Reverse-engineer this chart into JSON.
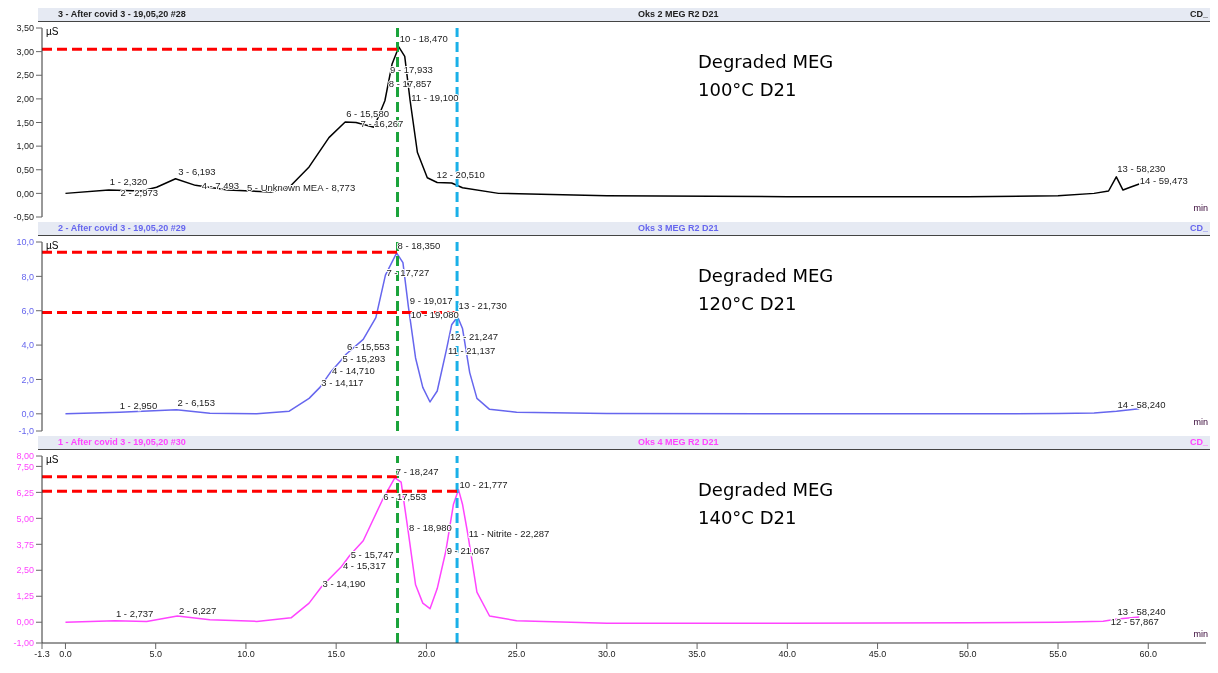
{
  "chart_data": [
    {
      "type": "line",
      "title": "3 - After covid 3 - 19,05,20 #28",
      "subtitle": "Oks 2 MEG R2 D21",
      "ylabel": "µS",
      "xlabel": "min",
      "tick_labels": "y",
      "marker": "none",
      "xlim": [
        -1.3,
        63.2
      ],
      "ylim": [
        -0.5,
        3.5
      ],
      "yticks": [
        {
          "value": -0.5,
          "label": "-0,50"
        },
        {
          "value": 0,
          "label": "0,00"
        },
        {
          "value": 0.5,
          "label": "0,50"
        },
        {
          "value": 1,
          "label": "1,00"
        },
        {
          "value": 1.5,
          "label": "1,50"
        },
        {
          "value": 2,
          "label": "2,00"
        },
        {
          "value": 2.5,
          "label": "2,50"
        },
        {
          "value": 3,
          "label": "3,00"
        },
        {
          "value": 3.5,
          "label": "3,50"
        }
      ],
      "series": [
        {
          "color": "#000000",
          "x": [
            0,
            2.4,
            4.2,
            5.05,
            6.1,
            7.2,
            9.0,
            11.4,
            12.4,
            13.5,
            14.6,
            15.5,
            16.1,
            17.1,
            17.7,
            18.1,
            18.47,
            18.8,
            19.1,
            19.5,
            20.05,
            20.6,
            21.4,
            22.0,
            24.0,
            30,
            40,
            50,
            55,
            57,
            57.8,
            58.23,
            58.6,
            59.0,
            59.5
          ],
          "values": [
            0,
            0.07,
            0.05,
            0.13,
            0.31,
            0.17,
            0.07,
            0.03,
            0.13,
            0.56,
            1.18,
            1.51,
            1.5,
            1.4,
            1.96,
            2.74,
            3.1,
            2.9,
            1.96,
            0.87,
            0.33,
            0.23,
            0.22,
            0.12,
            0,
            -0.05,
            -0.07,
            -0.07,
            -0.05,
            0,
            0.05,
            0.35,
            0.07,
            0.13,
            0.2
          ]
        }
      ],
      "ref_lines": [
        {
          "axis": "x",
          "value": 18.4,
          "color": "#1aa33a",
          "line_style": "dashed"
        },
        {
          "axis": "x",
          "value": 21.7,
          "color": "#1ab0e8",
          "line_style": "dashed"
        },
        {
          "axis": "y",
          "value": 3.05,
          "color": "#ff0000",
          "line_style": "dashed"
        }
      ],
      "annotations": [
        "Degraded MEG\n100°C D21",
        "CD_",
        {
          "text": "1 - 2,320",
          "x": 2.4,
          "y": 0.17
        },
        {
          "text": "2 - 2,973",
          "x": 3.0,
          "y": -0.05
        },
        {
          "text": "3 - 6,193",
          "x": 6.19,
          "y": 0.38
        },
        {
          "text": "4 - 7,493",
          "x": 7.49,
          "y": 0.1
        },
        {
          "text": "5 - Unknown MEA - 8,773",
          "x": 10.0,
          "y": 0.05
        },
        {
          "text": "6 - 15,580",
          "x": 15.5,
          "y": 1.62
        },
        {
          "text": "7 - 16,267",
          "x": 16.3,
          "y": 1.4
        },
        {
          "text": "8 - 17,857",
          "x": 17.86,
          "y": 2.25
        },
        {
          "text": "9 - 17,933",
          "x": 17.93,
          "y": 2.55
        },
        {
          "text": "10 - 18,470",
          "x": 18.47,
          "y": 3.2
        },
        {
          "text": "11 - 19,100",
          "x": 19.1,
          "y": 1.95
        },
        {
          "text": "12 - 20,510",
          "x": 20.51,
          "y": 0.32
        },
        {
          "text": "13 - 58,230",
          "x": 58.23,
          "y": 0.45
        },
        {
          "text": "14 - 59,473",
          "x": 59.47,
          "y": 0.2
        }
      ]
    },
    {
      "type": "line",
      "title": "2 - After covid 3 - 19,05,20 #29",
      "subtitle": "Oks 3 MEG R2 D21",
      "ylabel": "µS",
      "xlabel": "min",
      "tick_labels": "y",
      "marker": "none",
      "xlim": [
        -1.3,
        63.2
      ],
      "ylim": [
        -1,
        10
      ],
      "yticks": [
        {
          "value": -1,
          "label": "-1,0"
        },
        {
          "value": 0,
          "label": "0,0"
        },
        {
          "value": 2,
          "label": "2,0"
        },
        {
          "value": 4,
          "label": "4,0"
        },
        {
          "value": 6,
          "label": "6,0"
        },
        {
          "value": 8,
          "label": "8,0"
        },
        {
          "value": 10,
          "label": "10,0"
        }
      ],
      "series": [
        {
          "color": "#6666ee",
          "x": [
            0,
            3,
            6.15,
            8,
            10.6,
            12.4,
            13.5,
            14.1,
            14.7,
            15.3,
            15.55,
            16.5,
            17.2,
            17.73,
            18.35,
            18.7,
            19.0,
            19.4,
            19.8,
            20.2,
            20.6,
            21.1,
            21.4,
            21.73,
            22.0,
            22.4,
            22.8,
            23.5,
            25,
            30,
            40,
            50,
            55,
            57,
            58.24,
            59.5
          ],
          "values": [
            0,
            0.09,
            0.24,
            0.04,
            0,
            0.15,
            0.9,
            1.54,
            2.44,
            3.15,
            3.47,
            4.33,
            5.6,
            8.07,
            9.36,
            8.8,
            6.25,
            3.25,
            1.54,
            0.69,
            1.33,
            3.68,
            5.18,
            5.65,
            4.97,
            2.4,
            0.9,
            0.26,
            0.09,
            0.02,
            0,
            0,
            0.02,
            0.05,
            0.15,
            0.3
          ]
        }
      ],
      "ref_lines": [
        {
          "axis": "x",
          "value": 18.4,
          "color": "#1aa33a",
          "line_style": "dashed"
        },
        {
          "axis": "x",
          "value": 21.7,
          "color": "#1ab0e8",
          "line_style": "dashed"
        },
        {
          "axis": "y",
          "value": 9.4,
          "color": "#ff0000",
          "line_style": "dashed"
        },
        {
          "axis": "y",
          "value": 5.9,
          "color": "#ff0000",
          "line_style": "dashed"
        }
      ],
      "annotations": [
        "Degraded MEG\n120°C D21",
        "CD_",
        {
          "text": "1 - 2,950",
          "x": 2.95,
          "y": 0.3
        },
        {
          "text": "2 - 6,153",
          "x": 6.15,
          "y": 0.45
        },
        {
          "text": "3 - 14,117",
          "x": 14.12,
          "y": 1.6
        },
        {
          "text": "4 - 14,710",
          "x": 14.71,
          "y": 2.3
        },
        {
          "text": "5 - 15,293",
          "x": 15.29,
          "y": 3.0
        },
        {
          "text": "6 - 15,553",
          "x": 15.55,
          "y": 3.7
        },
        {
          "text": "7 - 17,727",
          "x": 17.73,
          "y": 8.0
        },
        {
          "text": "8 - 18,350",
          "x": 18.35,
          "y": 9.6
        },
        {
          "text": "9 - 19,017",
          "x": 19.02,
          "y": 6.4
        },
        {
          "text": "10 - 19,080",
          "x": 19.08,
          "y": 5.6
        },
        {
          "text": "11 - 21,137",
          "x": 21.14,
          "y": 3.5
        },
        {
          "text": "12 - 21,247",
          "x": 21.25,
          "y": 4.3
        },
        {
          "text": "13 - 21,730",
          "x": 21.73,
          "y": 6.1
        },
        {
          "text": "14 - 58,240",
          "x": 58.24,
          "y": 0.35
        }
      ]
    },
    {
      "type": "line",
      "title": "1 - After covid 3 - 19,05,20 #30",
      "subtitle": "Oks 4 MEG R2 D21",
      "ylabel": "µS",
      "xlabel": "min",
      "marker": "none",
      "xlim": [
        -1.3,
        63.2
      ],
      "ylim": [
        -1,
        8
      ],
      "xticks": [
        -1.3,
        {
          "value": 0,
          "label": "0.0"
        },
        {
          "value": 5,
          "label": "5.0"
        },
        {
          "value": 10,
          "label": "10.0"
        },
        {
          "value": 15,
          "label": "15.0"
        },
        {
          "value": 20,
          "label": "20.0"
        },
        {
          "value": 25,
          "label": "25.0"
        },
        {
          "value": 30,
          "label": "30.0"
        },
        {
          "value": 35,
          "label": "35.0"
        },
        {
          "value": 40,
          "label": "40.0"
        },
        {
          "value": 45,
          "label": "45.0"
        },
        {
          "value": 50,
          "label": "50.0"
        },
        {
          "value": 55,
          "label": "55.0"
        },
        {
          "value": 60,
          "label": "60.0"
        }
      ],
      "yticks": [
        {
          "value": -1,
          "label": "-1,00"
        },
        {
          "value": 0,
          "label": "0,00"
        },
        {
          "value": 1.25,
          "label": "1,25"
        },
        {
          "value": 2.5,
          "label": "2,50"
        },
        {
          "value": 3.75,
          "label": "3,75"
        },
        {
          "value": 5,
          "label": "5,00"
        },
        {
          "value": 6.25,
          "label": "6,25"
        },
        {
          "value": 7.5,
          "label": "7,50"
        },
        {
          "value": 8,
          "label": "8,00"
        }
      ],
      "series": [
        {
          "color": "#ff44ff",
          "x": [
            0,
            2.74,
            4.5,
            6.2,
            8,
            10.6,
            12.5,
            13.5,
            14.19,
            15.3,
            15.75,
            16.5,
            17.55,
            18.25,
            18.6,
            18.98,
            19.4,
            19.8,
            20.2,
            20.6,
            21.07,
            21.5,
            21.78,
            22.0,
            22.29,
            22.8,
            23.5,
            25,
            30,
            40,
            50,
            55,
            57.5,
            58.3,
            59.5
          ],
          "values": [
            0,
            0.07,
            0.03,
            0.3,
            0.12,
            0.04,
            0.21,
            0.92,
            1.71,
            2.68,
            3.21,
            3.92,
            5.86,
            6.95,
            6.74,
            4.44,
            1.8,
            0.92,
            0.65,
            1.62,
            3.39,
            5.68,
            6.38,
            5.68,
            4.27,
            1.45,
            0.3,
            0.07,
            -0.05,
            -0.05,
            -0.03,
            0,
            0.05,
            0.15,
            0.25
          ]
        }
      ],
      "ref_lines": [
        {
          "axis": "x",
          "value": 18.4,
          "color": "#1aa33a",
          "line_style": "dashed"
        },
        {
          "axis": "x",
          "value": 21.7,
          "color": "#1ab0e8",
          "line_style": "dashed"
        },
        {
          "axis": "y",
          "value": 7.0,
          "color": "#ff0000",
          "line_style": "dashed"
        },
        {
          "axis": "y",
          "value": 6.3,
          "color": "#ff0000",
          "line_style": "dashed"
        }
      ],
      "annotations": [
        "Degraded MEG\n140°C D21",
        "CD_",
        {
          "text": "1 - 2,737",
          "x": 2.74,
          "y": 0.25
        },
        {
          "text": "2 - 6,227",
          "x": 6.23,
          "y": 0.4
        },
        {
          "text": "3 - 14,190",
          "x": 14.19,
          "y": 1.7
        },
        {
          "text": "4 - 15,317",
          "x": 15.32,
          "y": 2.55
        },
        {
          "text": "5 - 15,747",
          "x": 15.75,
          "y": 3.1
        },
        {
          "text": "6 - 17,553",
          "x": 17.55,
          "y": 5.9
        },
        {
          "text": "7 - 18,247",
          "x": 18.25,
          "y": 7.1
        },
        {
          "text": "8 - 18,980",
          "x": 18.98,
          "y": 4.4
        },
        {
          "text": "9 - 21,067",
          "x": 21.07,
          "y": 3.3
        },
        {
          "text": "10 - 21,777",
          "x": 21.78,
          "y": 6.45
        },
        {
          "text": "11 - Nitrite - 22,287",
          "x": 22.29,
          "y": 4.1
        },
        {
          "text": "12 - 57,867",
          "x": 57.87,
          "y": -0.12
        },
        {
          "text": "13 - 58,240",
          "x": 58.24,
          "y": 0.35
        }
      ]
    }
  ]
}
